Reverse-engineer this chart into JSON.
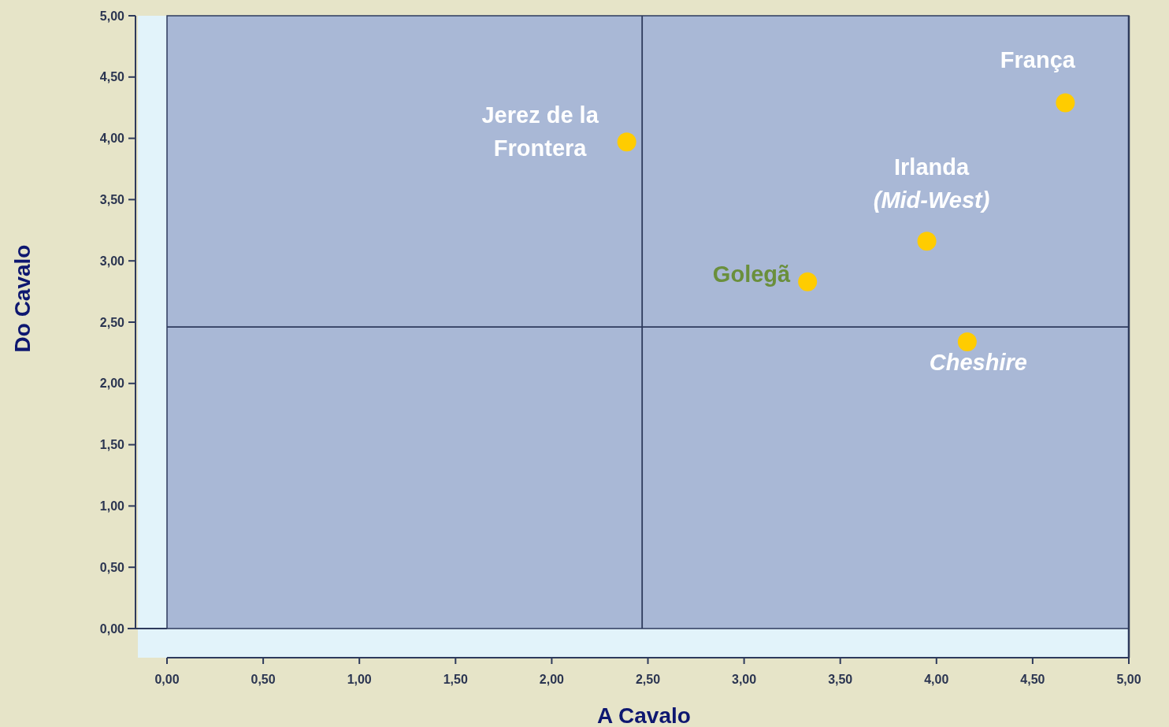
{
  "chart_data": {
    "type": "scatter",
    "xlabel": "A Cavalo",
    "ylabel": "Do Cavalo",
    "x": [
      2.39,
      4.67,
      3.95,
      3.33,
      4.16
    ],
    "series": [
      {
        "color": "#ffcc00",
        "values": [
          3.97,
          4.29,
          3.16,
          2.83,
          2.34
        ]
      }
    ],
    "marker": "circle",
    "grid": false,
    "xlim": [
      0,
      5
    ],
    "ylim": [
      0,
      5
    ],
    "xticks": [
      {
        "value": 0,
        "label": "0,00"
      },
      {
        "value": 0.5,
        "label": "0,50"
      },
      {
        "value": 1,
        "label": "1,00"
      },
      {
        "value": 1.5,
        "label": "1,50"
      },
      {
        "value": 2,
        "label": "2,00"
      },
      {
        "value": 2.5,
        "label": "2,50"
      },
      {
        "value": 3,
        "label": "3,00"
      },
      {
        "value": 3.5,
        "label": "3,50"
      },
      {
        "value": 4,
        "label": "4,00"
      },
      {
        "value": 4.5,
        "label": "4,50"
      },
      {
        "value": 5,
        "label": "5,00"
      }
    ],
    "yticks": [
      {
        "value": 0,
        "label": "0,00"
      },
      {
        "value": 0.5,
        "label": "0,50"
      },
      {
        "value": 1,
        "label": "1,00"
      },
      {
        "value": 1.5,
        "label": "1,50"
      },
      {
        "value": 2,
        "label": "2,00"
      },
      {
        "value": 2.5,
        "label": "2,50"
      },
      {
        "value": 3,
        "label": "3,00"
      },
      {
        "value": 3.5,
        "label": "3,50"
      },
      {
        "value": 4,
        "label": "4,00"
      },
      {
        "value": 4.5,
        "label": "4,50"
      },
      {
        "value": 5,
        "label": "5,00"
      }
    ],
    "ref_lines": [
      {
        "axis": "x",
        "value": 2.47,
        "color": "#2e3a5c"
      },
      {
        "axis": "y",
        "value": 2.46,
        "color": "#2e3a5c"
      }
    ],
    "annotations": [
      {
        "text": "Jerez de la\nFrontera",
        "x": 2.39,
        "y": 3.97
      },
      {
        "text": "França",
        "x": 4.67,
        "y": 4.29
      },
      {
        "text": "Irlanda\n(Mid-West)",
        "x": 3.95,
        "y": 3.16
      },
      {
        "text": "Golegã",
        "x": 3.33,
        "y": 2.83
      },
      {
        "text": "Cheshire",
        "x": 4.16,
        "y": 2.34
      }
    ]
  }
}
